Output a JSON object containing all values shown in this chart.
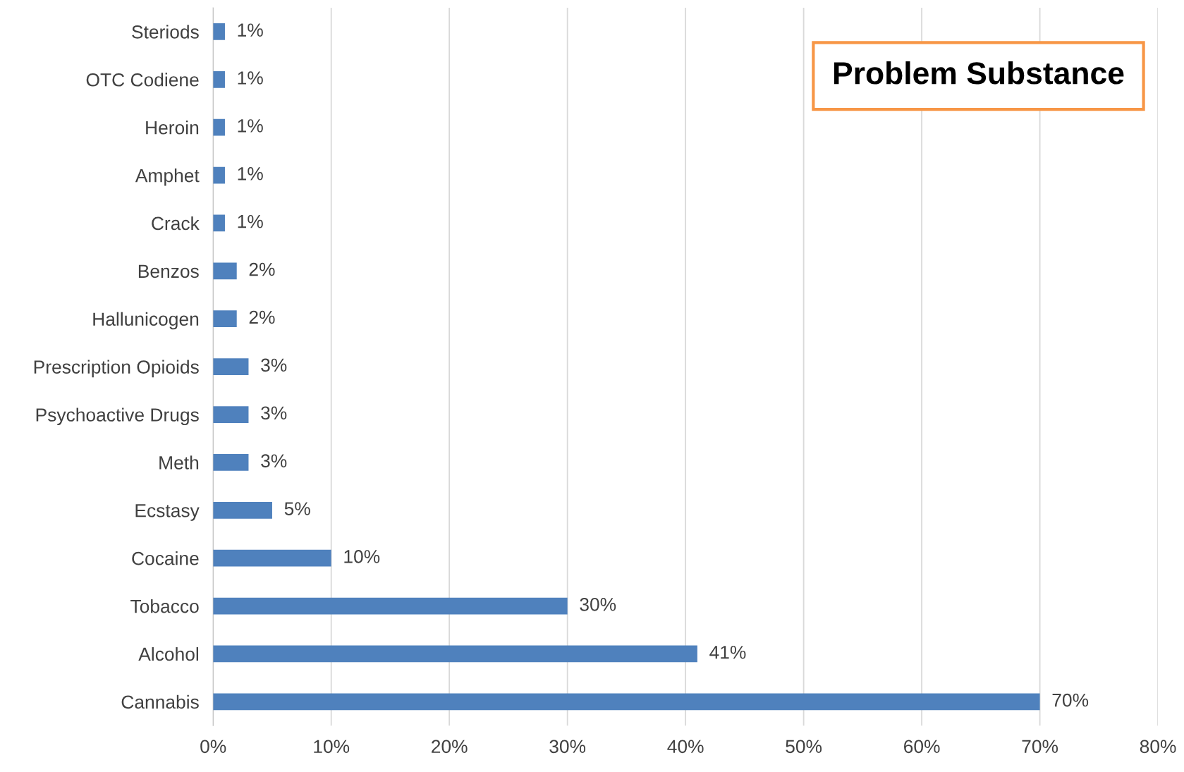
{
  "chart_data": {
    "type": "bar",
    "orientation": "horizontal",
    "title": "Problem Substance",
    "categories": [
      "Steriods",
      "OTC Codiene",
      "Heroin",
      "Amphet",
      "Crack",
      "Benzos",
      "Hallunicogen",
      "Prescription Opioids",
      "Psychoactive Drugs",
      "Meth",
      "Ecstasy",
      "Cocaine",
      "Tobacco",
      "Alcohol",
      "Cannabis"
    ],
    "values": [
      1,
      1,
      1,
      1,
      1,
      2,
      2,
      3,
      3,
      3,
      5,
      10,
      30,
      41,
      70
    ],
    "value_labels": [
      "1%",
      "1%",
      "1%",
      "1%",
      "1%",
      "2%",
      "2%",
      "3%",
      "3%",
      "3%",
      "5%",
      "10%",
      "30%",
      "41%",
      "70%"
    ],
    "color": "#4f81bd",
    "xlim": [
      0,
      80
    ],
    "xticks": [
      {
        "value": 0,
        "label": "0%"
      },
      {
        "value": 10,
        "label": "10%"
      },
      {
        "value": 20,
        "label": "20%"
      },
      {
        "value": 30,
        "label": "30%"
      },
      {
        "value": 40,
        "label": "40%"
      },
      {
        "value": 50,
        "label": "50%"
      },
      {
        "value": 60,
        "label": "60%"
      },
      {
        "value": 70,
        "label": "70%"
      },
      {
        "value": 80,
        "label": "80%"
      }
    ],
    "grid": "x"
  }
}
